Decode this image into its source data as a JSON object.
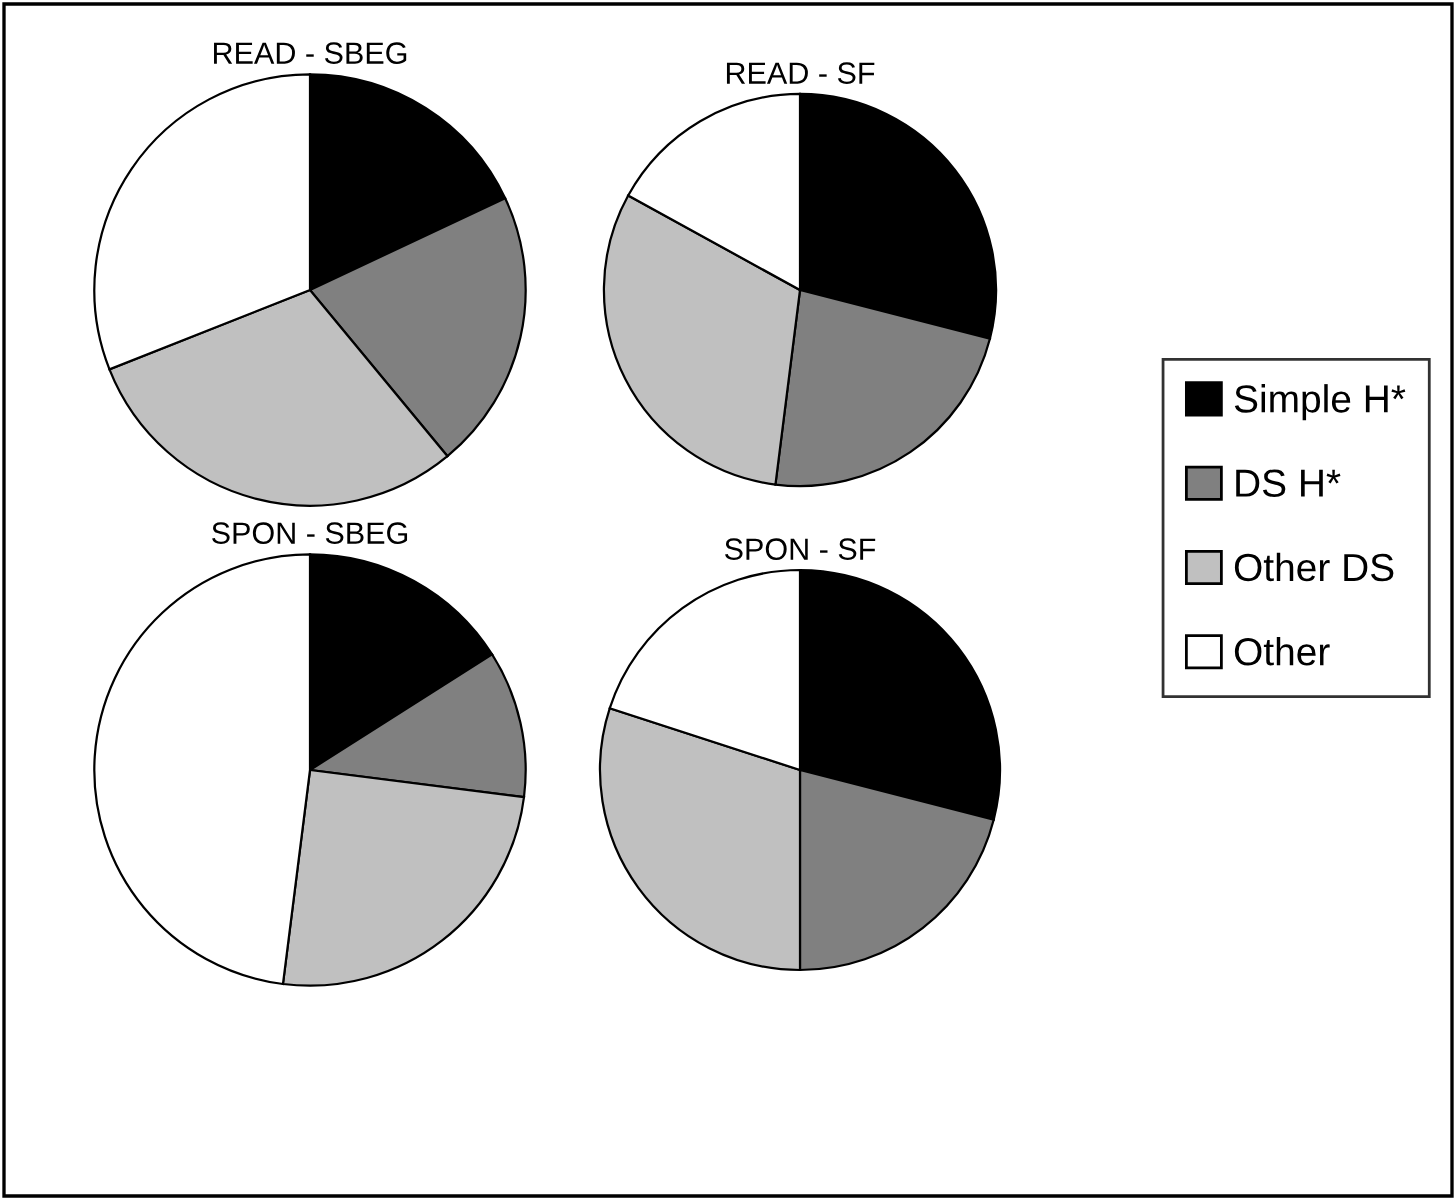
{
  "chart_data": [
    {
      "type": "pie",
      "title": "READ - SBEG",
      "categories": [
        "Simple H*",
        "DS H*",
        "Other DS",
        "Other"
      ],
      "values": [
        18,
        21,
        30,
        31
      ],
      "colors": [
        "#000000",
        "#808080",
        "#c0c0c0",
        "#ffffff"
      ],
      "legend": "right"
    },
    {
      "type": "pie",
      "title": "READ - SF",
      "categories": [
        null,
        null,
        null,
        null
      ],
      "values": [
        29,
        23,
        31,
        17
      ],
      "colors": [
        "#000000",
        "#808080",
        "#c0c0c0",
        "#ffffff"
      ]
    },
    {
      "type": "pie",
      "title": "SPON - SBEG",
      "categories": [
        null,
        null,
        null,
        null
      ],
      "values": [
        16,
        11,
        25,
        48
      ],
      "colors": [
        "#000000",
        "#808080",
        "#c0c0c0",
        "#ffffff"
      ]
    },
    {
      "type": "pie",
      "title": "SPON - SF",
      "categories": [
        null,
        null,
        null,
        null
      ],
      "values": [
        29,
        21,
        30,
        20
      ],
      "colors": [
        "#000000",
        "#808080",
        "#c0c0c0",
        "#ffffff"
      ]
    }
  ]
}
